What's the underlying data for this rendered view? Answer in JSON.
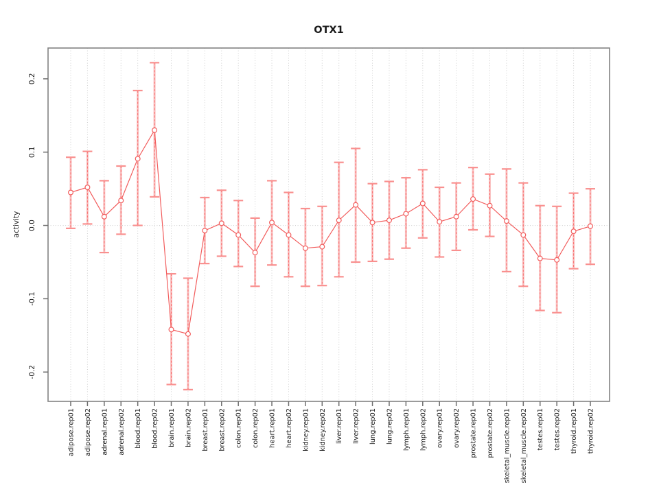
{
  "chart_data": {
    "type": "line",
    "title": "OTX1",
    "xlabel": "",
    "ylabel": "activity",
    "ylim": [
      -0.24,
      0.242
    ],
    "yticks": [
      -0.2,
      -0.1,
      0.0,
      0.1,
      0.2
    ],
    "grid": "vertical dotted gridlines at each category; dotted horizontal line at y=0; legend none",
    "marker": "open-circle",
    "categories": [
      "adipose.rep01",
      "adipose.rep02",
      "adrenal.rep01",
      "adrenal.rep02",
      "blood.rep01",
      "blood.rep02",
      "brain.rep01",
      "brain.rep02",
      "breast.rep01",
      "breast.rep02",
      "colon.rep01",
      "colon.rep02",
      "heart.rep01",
      "heart.rep02",
      "kidney.rep01",
      "kidney.rep02",
      "liver.rep01",
      "liver.rep02",
      "lung.rep01",
      "lung.rep02",
      "lymph.rep01",
      "lymph.rep02",
      "ovary.rep01",
      "ovary.rep02",
      "prostate.rep01",
      "prostate.rep02",
      "skeletal_muscle.rep01",
      "skeletal_muscle.rep02",
      "testes.rep01",
      "testes.rep02",
      "thyroid.rep01",
      "thyroid.rep02"
    ],
    "series": [
      {
        "name": "activity",
        "values": [
          0.045,
          0.052,
          0.012,
          0.034,
          0.091,
          0.13,
          -0.142,
          -0.148,
          -0.007,
          0.003,
          -0.013,
          -0.037,
          0.004,
          -0.013,
          -0.031,
          -0.029,
          0.007,
          0.028,
          0.004,
          0.007,
          0.016,
          0.03,
          0.005,
          0.012,
          0.036,
          0.027,
          0.006,
          -0.013,
          -0.045,
          -0.047,
          -0.008,
          -0.001
        ],
        "error_high": [
          0.093,
          0.101,
          0.061,
          0.081,
          0.184,
          0.222,
          -0.066,
          -0.072,
          0.038,
          0.048,
          0.034,
          0.01,
          0.061,
          0.045,
          0.023,
          0.026,
          0.086,
          0.105,
          0.057,
          0.06,
          0.065,
          0.076,
          0.052,
          0.058,
          0.079,
          0.07,
          0.077,
          0.058,
          0.027,
          0.026,
          0.044,
          0.05
        ],
        "error_low": [
          -0.004,
          0.002,
          -0.037,
          -0.012,
          0.0,
          0.039,
          -0.217,
          -0.224,
          -0.052,
          -0.042,
          -0.056,
          -0.083,
          -0.054,
          -0.07,
          -0.083,
          -0.082,
          -0.07,
          -0.05,
          -0.049,
          -0.046,
          -0.031,
          -0.017,
          -0.043,
          -0.034,
          -0.006,
          -0.015,
          -0.063,
          -0.083,
          -0.116,
          -0.119,
          -0.059,
          -0.053
        ]
      }
    ],
    "colors": {
      "line": "#f25c5c",
      "marker_stroke": "#f25c5c",
      "error_bar_solid": "rgba(246,140,140,0.55)",
      "error_bar_dash": "#fb6e6e",
      "error_cap": "#f9908f",
      "grid": "#cfcfcf",
      "zero_line": "#c9c9c9",
      "frame": "#828282",
      "tick": "#6e6e6e",
      "text": "#1a1a1a"
    }
  }
}
